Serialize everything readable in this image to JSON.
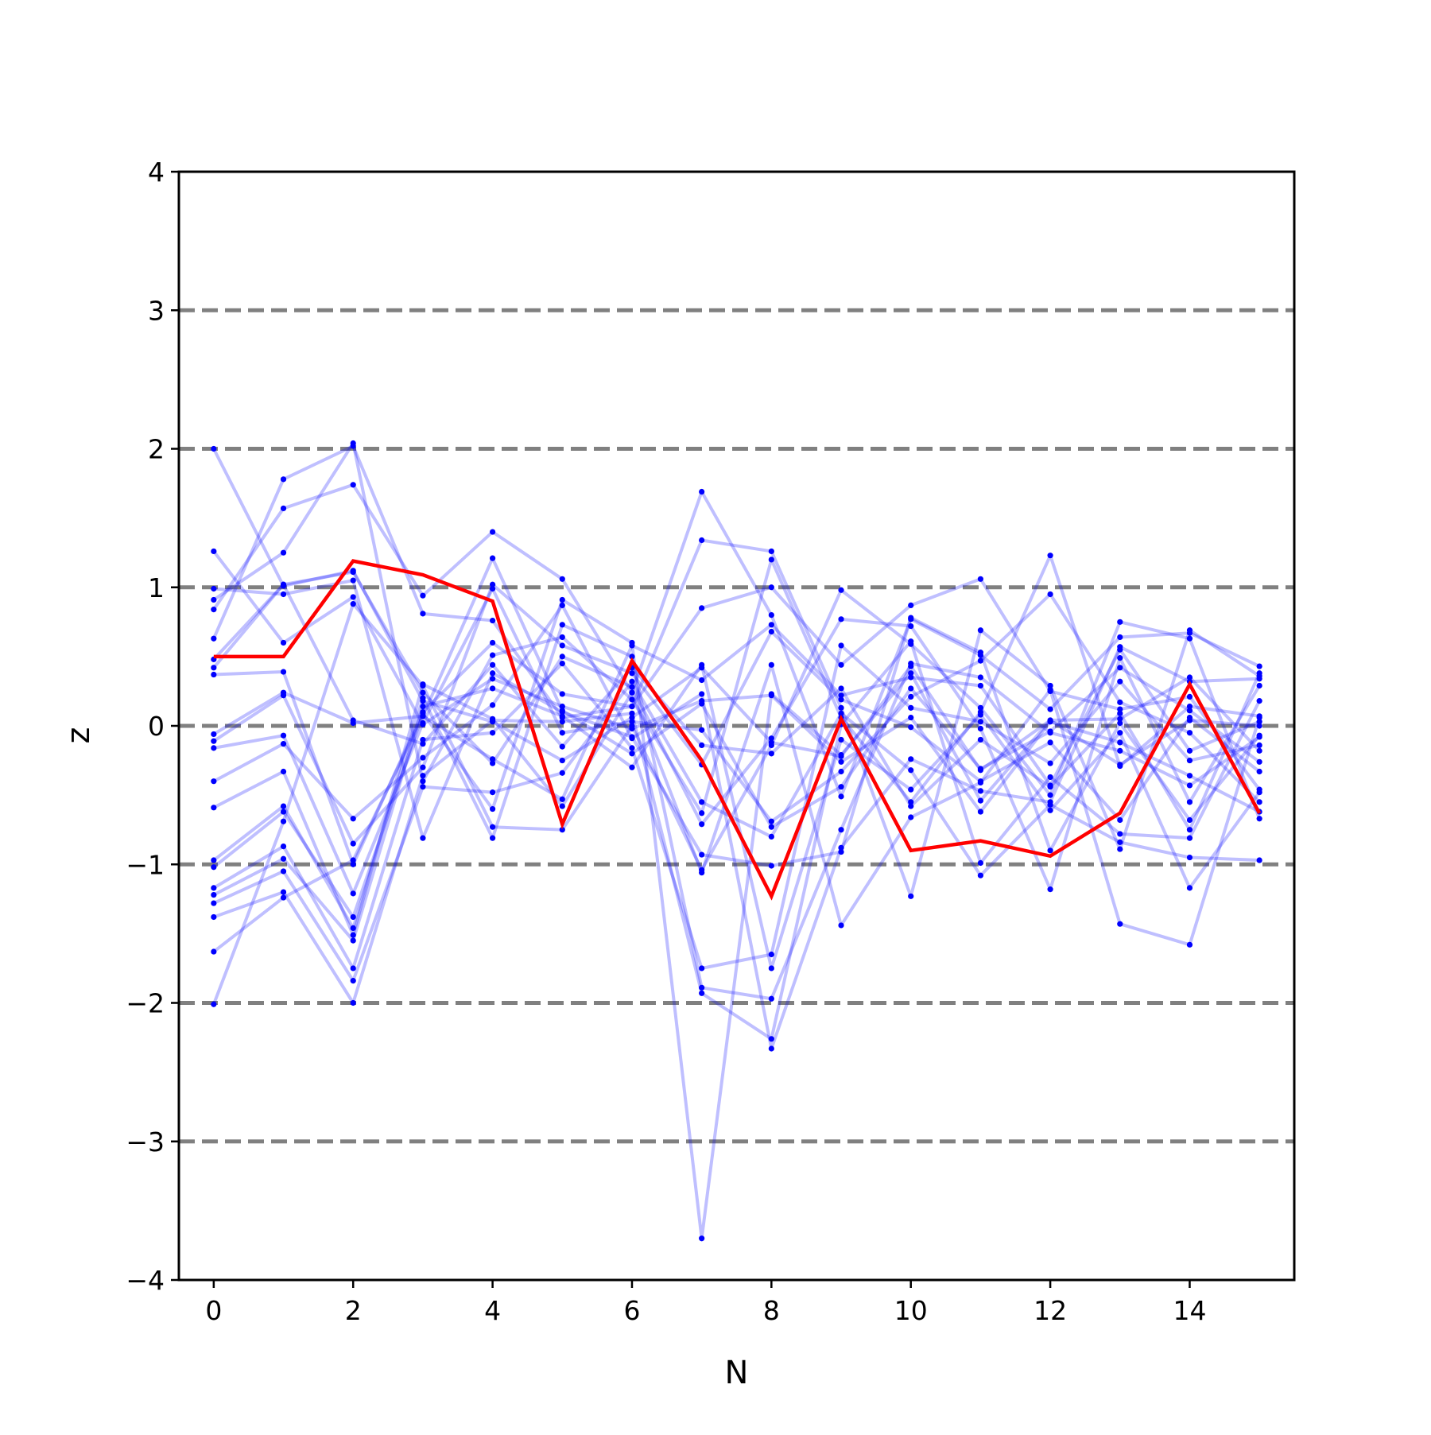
{
  "chart_data": {
    "type": "line",
    "title": "",
    "xlabel": "N",
    "ylabel": "z",
    "xlim": [
      -0.5,
      15.5
    ],
    "ylim": [
      -4,
      4
    ],
    "xticks": [
      0,
      2,
      4,
      6,
      8,
      10,
      12,
      14
    ],
    "yticks": [
      -4,
      -3,
      -2,
      -1,
      0,
      1,
      2,
      3,
      4
    ],
    "ytick_labels": [
      "−4",
      "−3",
      "−2",
      "−1",
      "0",
      "1",
      "2",
      "3",
      "4"
    ],
    "reference_lines": {
      "y": [
        -3,
        -2,
        -1,
        0,
        1,
        2,
        3
      ],
      "style": "dashed",
      "color": "#808080"
    },
    "grid": false,
    "legend": false,
    "colors": {
      "samples": "#0000ff",
      "highlight": "#ff0000",
      "reference": "#808080",
      "axes": "#000000"
    },
    "x": [
      0,
      1,
      2,
      3,
      4,
      5,
      6,
      7,
      8,
      9,
      10,
      11,
      12,
      13,
      14,
      15
    ],
    "highlight_series": {
      "values": [
        0.5,
        0.5,
        1.19,
        1.09,
        0.9,
        -0.71,
        0.47,
        -0.25,
        -1.23,
        0.05,
        -0.9,
        -0.83,
        -0.94,
        -0.63,
        0.3,
        -0.63
      ]
    },
    "series": [
      {
        "values": [
          2.0,
          1.01,
          1.12,
          0.18,
          0.03,
          -0.25,
          0.06,
          0.42,
          -0.12,
          -0.22,
          0.43,
          -0.32,
          0.04,
          -0.28,
          0.04,
          0.0
        ]
      },
      {
        "values": [
          1.26,
          0.6,
          0.93,
          0.01,
          0.34,
          0.14,
          -0.02,
          0.18,
          0.22,
          -0.26,
          0.06,
          -0.62,
          0.03,
          -0.12,
          -0.36,
          -0.62
        ]
      },
      {
        "values": [
          0.91,
          1.25,
          2.04,
          -0.4,
          0.51,
          0.64,
          0.19,
          -0.63,
          1.2,
          0.06,
          -0.55,
          0.1,
          1.23,
          -0.29,
          0.14,
          0.07
        ]
      },
      {
        "values": [
          0.84,
          1.57,
          1.74,
          0.94,
          1.4,
          1.06,
          0.24,
          1.69,
          0.8,
          -0.51,
          0.77,
          0.51,
          0.12,
          0.64,
          0.67,
          0.43
        ]
      },
      {
        "values": [
          0.63,
          1.78,
          2.02,
          0.81,
          0.76,
          0.06,
          0.14,
          1.34,
          1.26,
          0.13,
          -1.23,
          0.69,
          0.29,
          -0.89,
          0.69,
          0.36
        ]
      },
      {
        "values": [
          0.42,
          1.02,
          1.11,
          0.24,
          -0.27,
          0.5,
          0.28,
          -0.71,
          -0.09,
          0.77,
          0.72,
          -0.02,
          -1.18,
          0.49,
          -0.55,
          0.29
        ]
      },
      {
        "values": [
          0.37,
          0.39,
          -1.0,
          0.1,
          0.6,
          0.23,
          0.14,
          0.85,
          1.0,
          0.44,
          0.87,
          1.06,
          0.25,
          0.12,
          0.21,
          -0.46
        ]
      },
      {
        "values": [
          -0.06,
          0.24,
          0.02,
          0.07,
          -0.24,
          -0.53,
          0.58,
          0.33,
          0.73,
          0.22,
          0.35,
          0.29,
          -0.43,
          0.55,
          -0.18,
          0.03
        ]
      },
      {
        "values": [
          -0.11,
          0.22,
          -0.85,
          -0.3,
          1.02,
          0.58,
          0.38,
          -0.28,
          0.68,
          0.19,
          -0.01,
          -0.4,
          -0.12,
          -0.68,
          0.06,
          -0.33
        ]
      },
      {
        "values": [
          -0.16,
          -0.07,
          -1.21,
          0.02,
          0.99,
          -0.05,
          0.03,
          -0.03,
          -0.69,
          -0.33,
          0.21,
          0.47,
          0.95,
          0.17,
          -0.05,
          -0.55
        ]
      },
      {
        "values": [
          -0.4,
          -0.13,
          -0.67,
          -0.23,
          0.15,
          0.87,
          -0.09,
          0.23,
          -2.33,
          -0.88,
          -0.24,
          -0.47,
          -0.55,
          0.57,
          0.32,
          0.34
        ]
      },
      {
        "values": [
          -0.59,
          -0.33,
          -1.51,
          0.3,
          0.05,
          -0.58,
          0.24,
          -1.06,
          0.44,
          -1.44,
          -0.66,
          -0.41,
          0.26,
          -1.43,
          -1.58,
          0.06
        ]
      },
      {
        "values": [
          -0.97,
          -0.58,
          -1.46,
          0.2,
          -0.81,
          0.73,
          0.5,
          -1.89,
          -1.97,
          -0.75,
          0.45,
          0.35,
          -0.05,
          -0.18,
          -0.43,
          -0.08
        ]
      },
      {
        "values": [
          -1.02,
          -0.62,
          -1.38,
          0.09,
          -0.6,
          0.91,
          0.6,
          -3.7,
          0.23,
          -0.21,
          0.38,
          -0.54,
          0.04,
          0.05,
          0.35,
          -0.18
        ]
      },
      {
        "values": [
          -1.17,
          -0.87,
          -1.75,
          -0.1,
          -0.05,
          0.45,
          -0.16,
          -1.75,
          -1.65,
          0.58,
          0.13,
          0.03,
          -0.27,
          0.32,
          -0.25,
          -0.14
        ]
      },
      {
        "values": [
          -1.22,
          -0.96,
          -1.55,
          0.14,
          0.27,
          0.07,
          -0.3,
          0.44,
          -1.75,
          -0.1,
          -0.46,
          0.08,
          -0.61,
          -0.05,
          -1.17,
          -0.48
        ]
      },
      {
        "values": [
          -1.28,
          -1.05,
          -1.84,
          -0.44,
          -0.48,
          -0.34,
          0.32,
          -0.55,
          -0.8,
          0.09,
          -0.32,
          -1.08,
          -0.57,
          -0.84,
          -0.95,
          -0.97
        ]
      },
      {
        "values": [
          -1.38,
          -1.2,
          -2.0,
          -0.36,
          0.04,
          0.03,
          0.09,
          -1.93,
          -2.26,
          0.01,
          0.61,
          -0.99,
          -0.37,
          -0.78,
          -0.81,
          0.18
        ]
      },
      {
        "values": [
          -1.63,
          -1.24,
          -0.97,
          0.07,
          1.21,
          0.11,
          -0.2,
          0.16,
          -0.73,
          -0.44,
          0.27,
          -0.31,
          -0.04,
          0.42,
          0.11,
          -0.26
        ]
      },
      {
        "values": [
          -2.01,
          -0.69,
          0.88,
          0.29,
          -0.73,
          -0.75,
          0.0,
          -1.04,
          -0.14,
          0.98,
          0.59,
          0.13,
          -0.5,
          0.75,
          0.63,
          -0.67
        ]
      },
      {
        "values": [
          0.99,
          0.95,
          1.05,
          -0.81,
          0.38,
          0.1,
          -0.08,
          -0.93,
          -1.01,
          -0.91,
          0.78,
          0.53,
          -0.9,
          0.02,
          -0.68,
          -0.07
        ]
      },
      {
        "values": [
          0.48,
          1.02,
          0.04,
          -0.13,
          0.44,
          -0.15,
          0.42,
          -0.14,
          -0.2,
          0.27,
          -0.58,
          -0.1,
          -0.44,
          0.09,
          -0.75,
          0.38
        ]
      }
    ]
  }
}
